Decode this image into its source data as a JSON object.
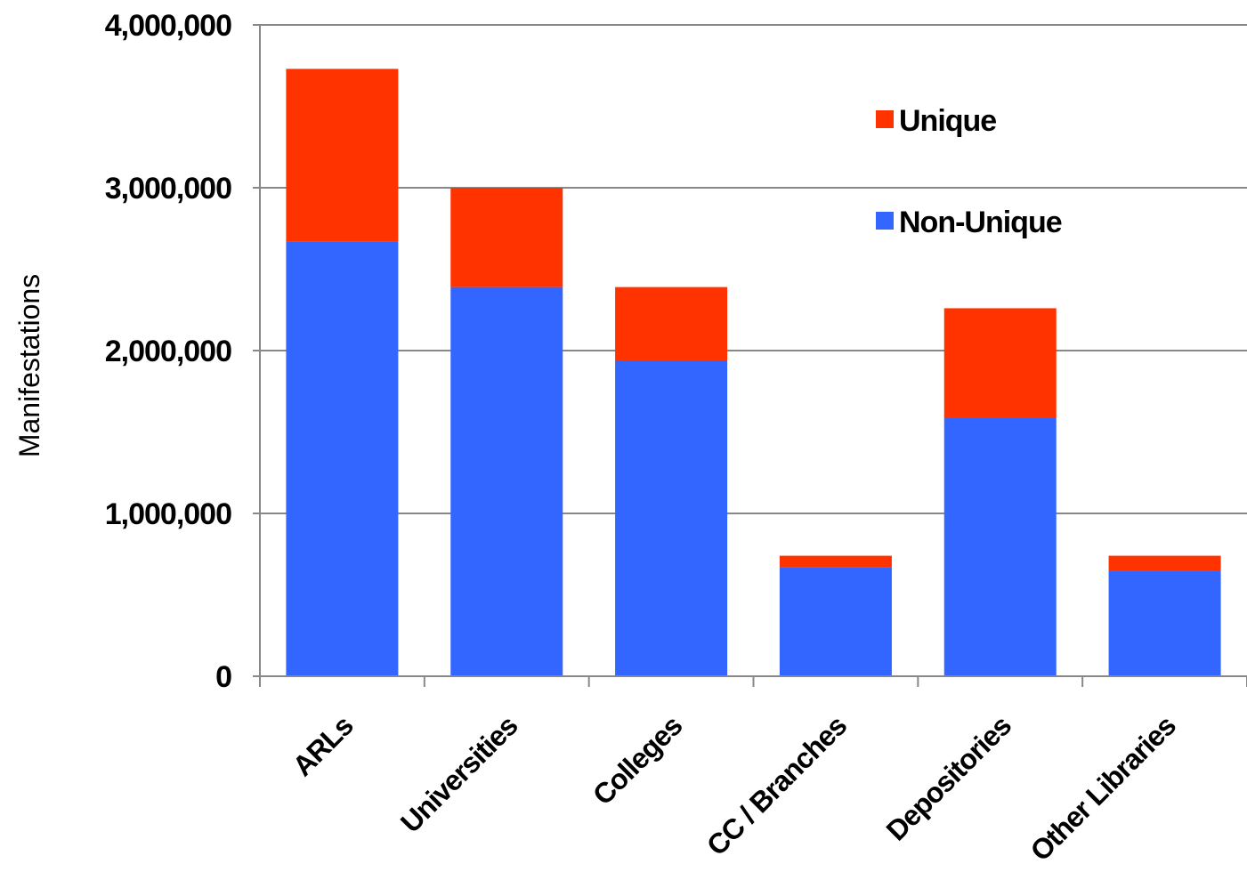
{
  "chart_data": {
    "type": "bar",
    "stacked": true,
    "title": "",
    "xlabel": "",
    "ylabel": "Manifestations",
    "ylim": [
      0,
      4000000
    ],
    "y_ticks": [
      0,
      1000000,
      2000000,
      3000000,
      4000000
    ],
    "y_tick_labels": [
      "0",
      "1,000,000",
      "2,000,000",
      "3,000,000",
      "4,000,000"
    ],
    "grid": true,
    "legend_position": "top-right",
    "categories": [
      "ARLs",
      "Universities",
      "Colleges",
      "CC / Branches",
      "Depositories",
      "Other Libraries"
    ],
    "series": [
      {
        "name": "Non-Unique",
        "color": "#3366FF",
        "values": [
          2670000,
          2390000,
          1940000,
          670000,
          1590000,
          650000
        ]
      },
      {
        "name": "Unique",
        "color": "#FF3300",
        "values": [
          1060000,
          610000,
          450000,
          70000,
          670000,
          90000
        ]
      }
    ],
    "legend_order": [
      "Unique",
      "Non-Unique"
    ]
  }
}
